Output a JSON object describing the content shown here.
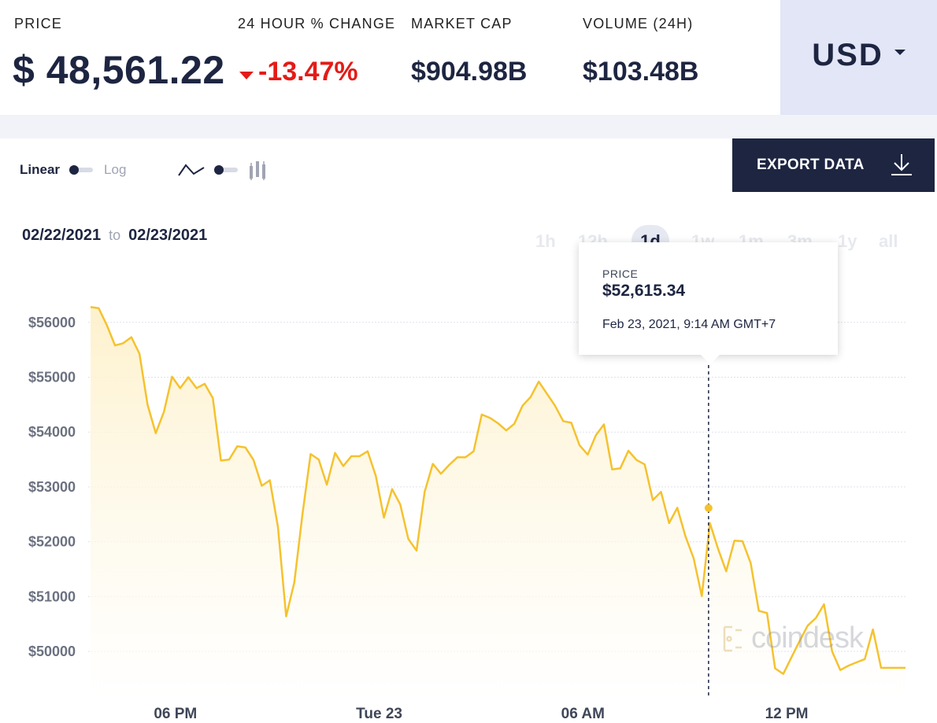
{
  "stats": {
    "price_label": "PRICE",
    "price_value": "$ 48,561.22",
    "change_label": "24 HOUR % CHANGE",
    "change_value": "-13.47%",
    "cap_label": "MARKET CAP",
    "cap_value": "$904.98B",
    "volume_label": "VOLUME (24H)",
    "volume_value": "$103.48B",
    "currency": "USD",
    "negative_color": "#e41b17"
  },
  "controls": {
    "linear_label": "Linear",
    "log_label": "Log",
    "export_label": "EXPORT DATA",
    "date_from": "02/22/2021",
    "date_to_word": "to",
    "date_to": "02/23/2021",
    "ranges": [
      "1h",
      "12h",
      "1d",
      "1w",
      "1m",
      "3m",
      "1y",
      "all"
    ],
    "active_range": "1d"
  },
  "tooltip": {
    "label": "PRICE",
    "value": "$52,615.34",
    "date": "Feb 23, 2021, 9:14 AM GMT+7"
  },
  "watermark": "coindesk",
  "chart_data": {
    "type": "area",
    "title": "",
    "xlabel": "",
    "ylabel": "",
    "ylim": [
      49000,
      56600
    ],
    "grid": true,
    "color": "#f5c22e",
    "y_ticks": [
      "$56000",
      "$55000",
      "$54000",
      "$53000",
      "$52000",
      "$51000",
      "$50000"
    ],
    "y_tick_values": [
      56000,
      55000,
      54000,
      53000,
      52000,
      51000,
      50000
    ],
    "x_ticks": [
      "06 PM",
      "Tue 23",
      "06 AM",
      "12 PM"
    ],
    "x_tick_hours": [
      2.5,
      8.5,
      14.5,
      20.5
    ],
    "x_range_hours": [
      0,
      24
    ],
    "highlight": {
      "hour": 18.2,
      "value": 52615
    },
    "x_hours": [
      0,
      0.24,
      0.48,
      0.72,
      0.96,
      1.2,
      1.44,
      1.68,
      1.92,
      2.16,
      2.4,
      2.64,
      2.88,
      3.12,
      3.36,
      3.6,
      3.84,
      4.08,
      4.32,
      4.56,
      4.8,
      5.04,
      5.28,
      5.52,
      5.76,
      6.0,
      6.24,
      6.48,
      6.72,
      6.96,
      7.2,
      7.44,
      7.68,
      7.92,
      8.16,
      8.4,
      8.64,
      8.88,
      9.12,
      9.36,
      9.6,
      9.84,
      10.08,
      10.32,
      10.56,
      10.8,
      11.04,
      11.28,
      11.52,
      11.76,
      12.0,
      12.24,
      12.48,
      12.72,
      12.96,
      13.2,
      13.44,
      13.68,
      13.92,
      14.16,
      14.4,
      14.64,
      14.88,
      15.12,
      15.36,
      15.6,
      15.84,
      16.08,
      16.32,
      16.56,
      16.8,
      17.04,
      17.28,
      17.52,
      17.76,
      18.0,
      18.24,
      18.48,
      18.72,
      18.96,
      19.2,
      19.44,
      19.68,
      19.92,
      20.16,
      20.4,
      20.64,
      20.88,
      21.12,
      21.36,
      21.6,
      21.84,
      22.08,
      22.32,
      22.56,
      22.8,
      23.04,
      23.28,
      23.52,
      23.76,
      24.0
    ],
    "values": [
      56280,
      56260,
      55950,
      55580,
      55620,
      55730,
      55430,
      54500,
      53980,
      54370,
      55010,
      54800,
      55000,
      54800,
      54880,
      54620,
      53480,
      53500,
      53740,
      53720,
      53490,
      53020,
      53120,
      52270,
      50640,
      51260,
      52500,
      53600,
      53500,
      53040,
      53620,
      53380,
      53560,
      53560,
      53650,
      53200,
      52440,
      52960,
      52680,
      52050,
      51840,
      52910,
      53420,
      53240,
      53400,
      53540,
      53540,
      53650,
      54320,
      54260,
      54160,
      54030,
      54150,
      54480,
      54640,
      54920,
      54700,
      54480,
      54200,
      54170,
      53760,
      53590,
      53940,
      54140,
      53320,
      53340,
      53660,
      53490,
      53410,
      52760,
      52910,
      52340,
      52620,
      52100,
      51700,
      51010,
      52340,
      51870,
      51460,
      52020,
      52010,
      51610,
      50740,
      50700,
      49690,
      49590,
      49890,
      50190,
      50470,
      50610,
      50860,
      50000,
      49660,
      49740,
      49800,
      49860,
      50400,
      49700,
      49700,
      49700,
      49700
    ]
  }
}
